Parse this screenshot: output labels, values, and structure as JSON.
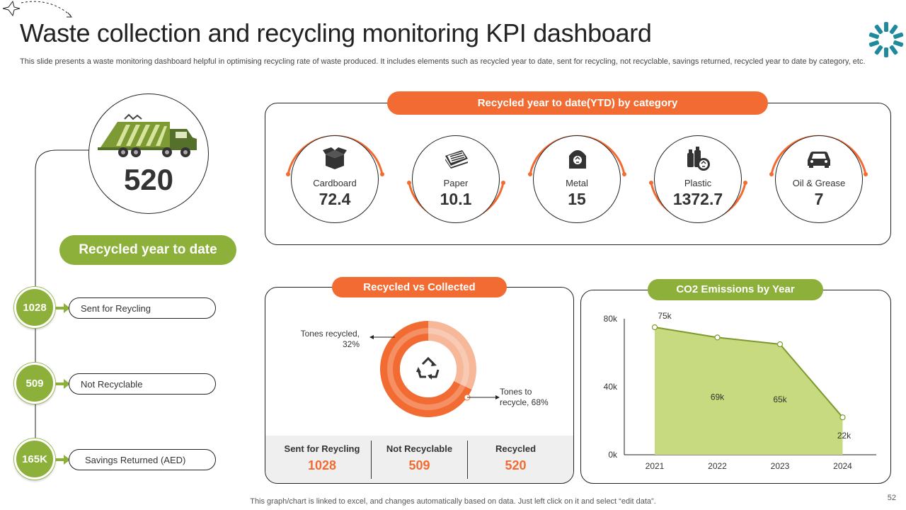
{
  "header": {
    "title": "Waste collection and recycling monitoring KPI dashboard",
    "subtitle": "This slide presents a waste monitoring dashboard helpful in optimising recycling rate of waste produced. It includes elements such as recycled year to date, sent for recycling, not recyclable, savings returned, recycled year to date by category, etc."
  },
  "total": {
    "value": "520",
    "label": "Recycled year to date"
  },
  "kpis": [
    {
      "value": "1028",
      "label": "Sent for Reycling"
    },
    {
      "value": "509",
      "label": "Not Recyclable"
    },
    {
      "value": "165K",
      "label": "Savings Returned (AED)"
    }
  ],
  "categories_panel": {
    "title": "Recycled year to date(YTD) by category",
    "items": [
      {
        "name": "Cardboard",
        "value": "72.4",
        "icon": "box-icon"
      },
      {
        "name": "Paper",
        "value": "10.1",
        "icon": "paper-stack-icon"
      },
      {
        "name": "Metal",
        "value": "15",
        "icon": "metal-bin-icon"
      },
      {
        "name": "Plastic",
        "value": "1372.7",
        "icon": "plastic-bottles-icon"
      },
      {
        "name": "Oil & Grease",
        "value": "7",
        "icon": "car-icon"
      }
    ]
  },
  "donut_panel": {
    "title": "Recycled vs Collected",
    "label_recycled": "Tones recycled,\n32%",
    "label_to_recycle": "Tones to\nrecycle, 68%",
    "table": [
      {
        "head": "Sent for Reycling",
        "value": "1028"
      },
      {
        "head": "Not Recyclable",
        "value": "509"
      },
      {
        "head": "Recycled",
        "value": "520"
      }
    ]
  },
  "co2_panel": {
    "title": "CO2 Emissions by Year"
  },
  "chart_data": [
    {
      "type": "pie",
      "title": "Recycled vs Collected",
      "categories": [
        "Tones recycled",
        "Tones to recycle"
      ],
      "values": [
        32,
        68
      ],
      "colors": [
        "#f7b89a",
        "#f26b32"
      ]
    },
    {
      "type": "area",
      "title": "CO2 Emissions by Year",
      "categories": [
        "2021",
        "2022",
        "2023",
        "2024"
      ],
      "values": [
        75,
        69,
        65,
        22
      ],
      "data_labels": [
        "75k",
        "69k",
        "65k",
        "22k"
      ],
      "yticks": [
        "0k",
        "40k",
        "80k"
      ],
      "ylim": [
        0,
        80
      ],
      "fill": "#c8da7f",
      "line": "#7c9a2e"
    }
  ],
  "footer": {
    "note": "This graph/chart is linked to excel, and changes automatically based on data. Just left click on it and select “edit data”.",
    "page": "52"
  },
  "colors": {
    "orange": "#f26b32",
    "green": "#8cb03a",
    "teal": "#1f8a9c"
  }
}
